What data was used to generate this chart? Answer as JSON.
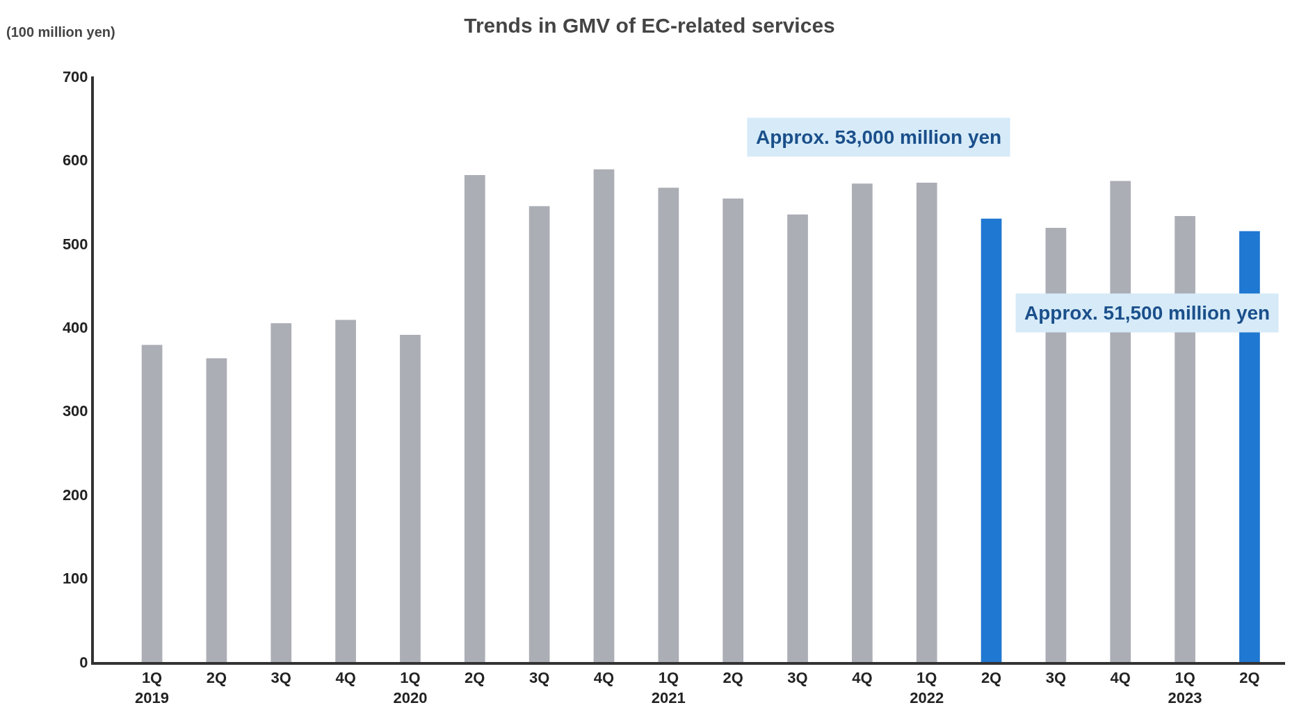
{
  "chart_data": {
    "type": "bar",
    "title": "Trends in GMV of EC-related services",
    "ylabel": "(100 million yen)",
    "categories": [
      "1Q\n2019",
      "2Q",
      "3Q",
      "4Q",
      "1Q\n2020",
      "2Q",
      "3Q",
      "4Q",
      "1Q\n2021",
      "2Q",
      "3Q",
      "4Q",
      "1Q\n2022",
      "2Q",
      "3Q",
      "4Q",
      "1Q\n2023",
      "2Q"
    ],
    "values": [
      379,
      363,
      405,
      409,
      391,
      582,
      545,
      589,
      567,
      554,
      535,
      572,
      573,
      530,
      519,
      575,
      533,
      515
    ],
    "colors": [
      "#abaeb5",
      "#abaeb5",
      "#abaeb5",
      "#abaeb5",
      "#abaeb5",
      "#abaeb5",
      "#abaeb5",
      "#abaeb5",
      "#abaeb5",
      "#abaeb5",
      "#abaeb5",
      "#abaeb5",
      "#abaeb5",
      "#1f78d1",
      "#abaeb5",
      "#abaeb5",
      "#abaeb5",
      "#1f78d1"
    ],
    "ylim": [
      0,
      700
    ],
    "yticks": [
      0,
      100,
      200,
      300,
      400,
      500,
      600,
      700
    ],
    "annotations": [
      "Approx. 53,000 million yen",
      "Approx. 51,500 million yen"
    ]
  }
}
